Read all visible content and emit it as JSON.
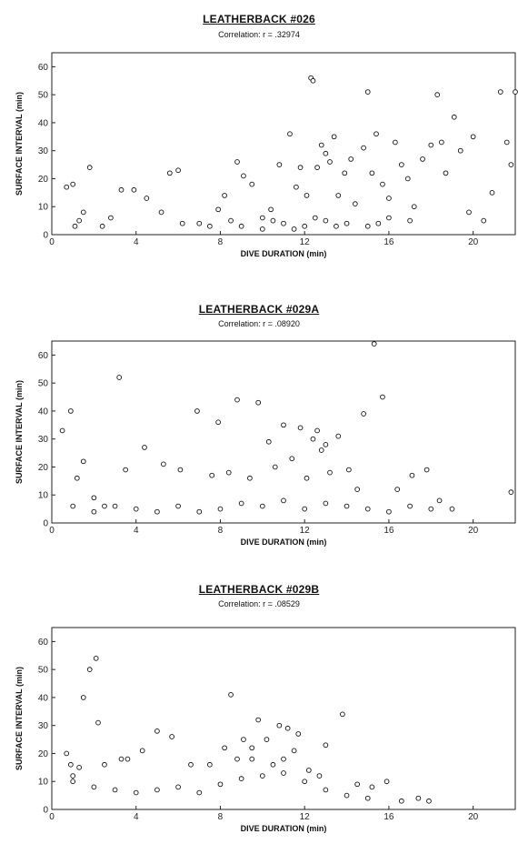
{
  "chart_data": [
    {
      "type": "scatter",
      "title": "LEATHERBACK #026",
      "subtitle": "Correlation: r = .32974",
      "xlabel": "DIVE DURATION (min)",
      "ylabel": "SURFACE INTERVAL (min)",
      "xlim": [
        0,
        22
      ],
      "ylim": [
        0,
        65
      ],
      "xticks": [
        "0",
        "4",
        "8",
        "12",
        "16",
        "20"
      ],
      "yticks": [
        "0",
        "10",
        "20",
        "30",
        "40",
        "50",
        "60"
      ],
      "grid": false,
      "points": [
        [
          0.7,
          17
        ],
        [
          1,
          18
        ],
        [
          1.1,
          3
        ],
        [
          1.3,
          5
        ],
        [
          1.5,
          8
        ],
        [
          1.8,
          24
        ],
        [
          2.4,
          3
        ],
        [
          2.8,
          6
        ],
        [
          3.3,
          16
        ],
        [
          3.9,
          16
        ],
        [
          4.5,
          13
        ],
        [
          5.2,
          8
        ],
        [
          5.6,
          22
        ],
        [
          6,
          23
        ],
        [
          6.2,
          4
        ],
        [
          7,
          4
        ],
        [
          7.5,
          3
        ],
        [
          7.9,
          9
        ],
        [
          8.2,
          14
        ],
        [
          8.5,
          5
        ],
        [
          8.8,
          26
        ],
        [
          9.1,
          21
        ],
        [
          9.5,
          18
        ],
        [
          10,
          6
        ],
        [
          10.4,
          9
        ],
        [
          10.8,
          25
        ],
        [
          11.3,
          36
        ],
        [
          11.6,
          17
        ],
        [
          11.8,
          24
        ],
        [
          12.1,
          14
        ],
        [
          12.3,
          56
        ],
        [
          12.4,
          55
        ],
        [
          12.6,
          24
        ],
        [
          12.8,
          32
        ],
        [
          13,
          29
        ],
        [
          13.2,
          26
        ],
        [
          13.4,
          35
        ],
        [
          13.6,
          14
        ],
        [
          13.9,
          22
        ],
        [
          14.2,
          27
        ],
        [
          14.4,
          11
        ],
        [
          14.8,
          31
        ],
        [
          15,
          51
        ],
        [
          15.2,
          22
        ],
        [
          15.4,
          36
        ],
        [
          15.7,
          18
        ],
        [
          16,
          13
        ],
        [
          16.3,
          33
        ],
        [
          16.6,
          25
        ],
        [
          16.9,
          20
        ],
        [
          17.2,
          10
        ],
        [
          17.6,
          27
        ],
        [
          18,
          32
        ],
        [
          18.3,
          50
        ],
        [
          18.5,
          33
        ],
        [
          18.7,
          22
        ],
        [
          19.1,
          42
        ],
        [
          19.4,
          30
        ],
        [
          19.8,
          8
        ],
        [
          20,
          35
        ],
        [
          20.5,
          5
        ],
        [
          20.9,
          15
        ],
        [
          21.3,
          51
        ],
        [
          21.6,
          33
        ],
        [
          21.8,
          25
        ],
        [
          22,
          51
        ],
        [
          10.5,
          5
        ],
        [
          11,
          4
        ],
        [
          12,
          3
        ],
        [
          12.5,
          6
        ],
        [
          13,
          5
        ],
        [
          14,
          4
        ],
        [
          15,
          3
        ],
        [
          16,
          6
        ],
        [
          17,
          5
        ],
        [
          9,
          3
        ],
        [
          10,
          2
        ],
        [
          11.5,
          2
        ],
        [
          13.5,
          3
        ],
        [
          15.5,
          4
        ]
      ]
    },
    {
      "type": "scatter",
      "title": "LEATHERBACK #029A",
      "subtitle": "Correlation: r = .08920",
      "xlabel": "DIVE DURATION (min)",
      "ylabel": "SURFACE INTERVAL (min)",
      "xlim": [
        0,
        22
      ],
      "ylim": [
        0,
        65
      ],
      "xticks": [
        "0",
        "4",
        "8",
        "12",
        "16",
        "20"
      ],
      "yticks": [
        "0",
        "10",
        "20",
        "30",
        "40",
        "50",
        "60"
      ],
      "grid": false,
      "points": [
        [
          0.5,
          33
        ],
        [
          0.9,
          40
        ],
        [
          1.2,
          16
        ],
        [
          1.5,
          22
        ],
        [
          2,
          9
        ],
        [
          2.5,
          6
        ],
        [
          3.2,
          52
        ],
        [
          3.5,
          19
        ],
        [
          4.4,
          27
        ],
        [
          5.3,
          21
        ],
        [
          6.1,
          19
        ],
        [
          6.9,
          40
        ],
        [
          7.6,
          17
        ],
        [
          7.9,
          36
        ],
        [
          8.4,
          18
        ],
        [
          8.8,
          44
        ],
        [
          9.4,
          16
        ],
        [
          9.8,
          43
        ],
        [
          10.3,
          29
        ],
        [
          10.6,
          20
        ],
        [
          11,
          35
        ],
        [
          11.4,
          23
        ],
        [
          11.8,
          34
        ],
        [
          12.1,
          16
        ],
        [
          12.4,
          30
        ],
        [
          12.6,
          33
        ],
        [
          12.8,
          26
        ],
        [
          13,
          28
        ],
        [
          13.2,
          18
        ],
        [
          13.6,
          31
        ],
        [
          14.1,
          19
        ],
        [
          14.5,
          12
        ],
        [
          14.8,
          39
        ],
        [
          15.3,
          64
        ],
        [
          15.7,
          45
        ],
        [
          16.4,
          12
        ],
        [
          17.1,
          17
        ],
        [
          17.8,
          19
        ],
        [
          18.4,
          8
        ],
        [
          21.8,
          11
        ],
        [
          9,
          7
        ],
        [
          10,
          6
        ],
        [
          11,
          8
        ],
        [
          12,
          5
        ],
        [
          13,
          7
        ],
        [
          14,
          6
        ],
        [
          15,
          5
        ],
        [
          16,
          4
        ],
        [
          17,
          6
        ],
        [
          18,
          5
        ],
        [
          19,
          5
        ],
        [
          8,
          5
        ],
        [
          7,
          4
        ],
        [
          6,
          6
        ],
        [
          5,
          4
        ],
        [
          4,
          5
        ],
        [
          3,
          6
        ],
        [
          2,
          4
        ],
        [
          1,
          6
        ]
      ]
    },
    {
      "type": "scatter",
      "title": "LEATHERBACK #029B",
      "subtitle": "Correlation: r = .08529",
      "xlabel": "DIVE DURATION (min)",
      "ylabel": "SURFACE INTERVAL (min)",
      "xlim": [
        0,
        22
      ],
      "ylim": [
        0,
        65
      ],
      "xticks": [
        "0",
        "4",
        "8",
        "12",
        "16",
        "20"
      ],
      "yticks": [
        "0",
        "10",
        "20",
        "30",
        "40",
        "50",
        "60"
      ],
      "grid": false,
      "points": [
        [
          0.7,
          20
        ],
        [
          0.9,
          16
        ],
        [
          1.3,
          15
        ],
        [
          1.5,
          40
        ],
        [
          1.8,
          50
        ],
        [
          2.1,
          54
        ],
        [
          2.2,
          31
        ],
        [
          2.5,
          16
        ],
        [
          3.3,
          18
        ],
        [
          3.6,
          18
        ],
        [
          4.3,
          21
        ],
        [
          5,
          28
        ],
        [
          5.7,
          26
        ],
        [
          6.6,
          16
        ],
        [
          7.5,
          16
        ],
        [
          8.2,
          22
        ],
        [
          8.5,
          41
        ],
        [
          8.8,
          18
        ],
        [
          9.1,
          25
        ],
        [
          9.5,
          22
        ],
        [
          9.8,
          32
        ],
        [
          10.2,
          25
        ],
        [
          10.8,
          30
        ],
        [
          11.2,
          29
        ],
        [
          11.5,
          21
        ],
        [
          11.7,
          27
        ],
        [
          12.2,
          14
        ],
        [
          12.7,
          12
        ],
        [
          13,
          23
        ],
        [
          13.8,
          34
        ],
        [
          14.5,
          9
        ],
        [
          15.2,
          8
        ],
        [
          15.9,
          10
        ],
        [
          16.6,
          3
        ],
        [
          17.4,
          4
        ],
        [
          17.9,
          3
        ],
        [
          2,
          8
        ],
        [
          3,
          7
        ],
        [
          4,
          6
        ],
        [
          5,
          7
        ],
        [
          6,
          8
        ],
        [
          7,
          6
        ],
        [
          8,
          9
        ],
        [
          9,
          11
        ],
        [
          10,
          12
        ],
        [
          11,
          13
        ],
        [
          12,
          10
        ],
        [
          13,
          7
        ],
        [
          14,
          5
        ],
        [
          15,
          4
        ],
        [
          1,
          10
        ],
        [
          1,
          12
        ],
        [
          9.5,
          18
        ],
        [
          10.5,
          16
        ],
        [
          11,
          18
        ]
      ]
    }
  ]
}
